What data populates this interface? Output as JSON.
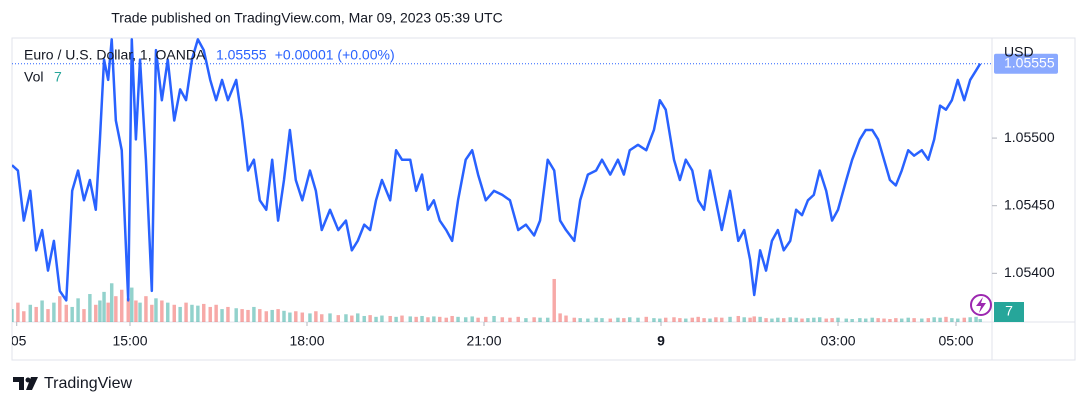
{
  "chart_data": {
    "type": "line",
    "title": "Trade published on TradingView.com, Mar 09, 2023 05:39 UTC",
    "change": "+0.00001 (+0.00%)",
    "currency": "USD",
    "brand": "TradingView",
    "x": [
      13.0,
      13.1,
      13.2,
      13.31,
      13.41,
      13.51,
      13.61,
      13.71,
      13.81,
      13.92,
      14.02,
      14.12,
      14.22,
      14.32,
      14.42,
      14.49,
      14.56,
      14.63,
      14.69,
      14.76,
      14.86,
      14.97,
      15.03,
      15.1,
      15.17,
      15.27,
      15.37,
      15.44,
      15.54,
      15.64,
      15.75,
      15.85,
      15.95,
      16.05,
      16.15,
      16.25,
      16.36,
      16.46,
      16.56,
      16.66,
      16.8,
      16.9,
      17.0,
      17.1,
      17.2,
      17.31,
      17.41,
      17.51,
      17.61,
      17.71,
      17.81,
      17.92,
      18.05,
      18.15,
      18.25,
      18.39,
      18.53,
      18.66,
      18.76,
      18.86,
      18.97,
      19.07,
      19.17,
      19.27,
      19.41,
      19.51,
      19.61,
      19.75,
      19.85,
      19.95,
      20.05,
      20.15,
      20.25,
      20.36,
      20.46,
      20.56,
      20.69,
      20.8,
      20.9,
      21.03,
      21.17,
      21.31,
      21.44,
      21.58,
      21.71,
      21.85,
      21.95,
      22.08,
      22.19,
      22.29,
      22.39,
      22.53,
      22.63,
      22.76,
      22.9,
      23.0,
      23.14,
      23.27,
      23.37,
      23.47,
      23.61,
      23.75,
      23.88,
      23.98,
      24.08,
      24.22,
      24.32,
      24.42,
      24.53,
      24.63,
      24.73,
      24.83,
      24.93,
      25.03,
      25.17,
      25.31,
      25.41,
      25.51,
      25.58,
      25.68,
      25.78,
      25.88,
      25.98,
      26.08,
      26.19,
      26.29,
      26.39,
      26.49,
      26.59,
      26.69,
      26.8,
      26.9,
      27.0,
      27.14,
      27.24,
      27.37,
      27.47,
      27.58,
      27.68,
      27.78,
      27.88,
      27.98,
      28.08,
      28.19,
      28.29,
      28.42,
      28.53,
      28.63,
      28.73,
      28.83,
      28.93,
      29.03,
      29.14,
      29.24,
      29.34,
      29.41
    ],
    "series": [
      {
        "name": "Euro / U.S. Dollar, 1, OANDA",
        "color": "#2962ff",
        "values": [
          1.0548,
          1.05476,
          1.05439,
          1.05461,
          1.05417,
          1.05432,
          1.05402,
          1.05424,
          1.05387,
          1.0538,
          1.05461,
          1.05476,
          1.05454,
          1.05469,
          1.05447,
          1.05499,
          1.05558,
          1.05543,
          1.05573,
          1.05513,
          1.05491,
          1.0538,
          1.05573,
          1.05499,
          1.05558,
          1.05484,
          1.05387,
          1.05565,
          1.05528,
          1.05558,
          1.05513,
          1.05536,
          1.05528,
          1.05558,
          1.05573,
          1.05565,
          1.05543,
          1.05528,
          1.05543,
          1.05528,
          1.05543,
          1.05513,
          1.05476,
          1.05484,
          1.05454,
          1.05447,
          1.05484,
          1.05439,
          1.05469,
          1.05506,
          1.05469,
          1.05454,
          1.05476,
          1.05461,
          1.05432,
          1.05447,
          1.05432,
          1.05439,
          1.05417,
          1.05424,
          1.05436,
          1.05432,
          1.05454,
          1.05469,
          1.05454,
          1.05491,
          1.05484,
          1.05484,
          1.05461,
          1.05473,
          1.05447,
          1.05454,
          1.05439,
          1.05432,
          1.05424,
          1.05454,
          1.05484,
          1.05491,
          1.05473,
          1.05454,
          1.05461,
          1.05458,
          1.05454,
          1.05432,
          1.05436,
          1.05428,
          1.05439,
          1.05484,
          1.05476,
          1.05439,
          1.05432,
          1.05424,
          1.05454,
          1.05473,
          1.05476,
          1.05484,
          1.05473,
          1.05484,
          1.05473,
          1.05491,
          1.05495,
          1.05491,
          1.05506,
          1.05528,
          1.05521,
          1.05484,
          1.05469,
          1.05484,
          1.05476,
          1.05454,
          1.05447,
          1.05476,
          1.05454,
          1.05432,
          1.05461,
          1.05424,
          1.05432,
          1.0541,
          1.05384,
          1.05417,
          1.05402,
          1.05424,
          1.05432,
          1.05417,
          1.05424,
          1.05447,
          1.05443,
          1.05454,
          1.05458,
          1.05476,
          1.05461,
          1.05439,
          1.05447,
          1.05469,
          1.05484,
          1.05499,
          1.05506,
          1.05506,
          1.05499,
          1.05484,
          1.05469,
          1.05465,
          1.05476,
          1.05491,
          1.05487,
          1.05491,
          1.05484,
          1.05499,
          1.05524,
          1.05521,
          1.05528,
          1.05543,
          1.05528,
          1.05543,
          1.0555,
          1.05555
        ]
      }
    ],
    "volume": {
      "name": "Vol",
      "up_color": "#26a69a",
      "down_color": "#ef5350",
      "lim": [
        0,
        660
      ],
      "values": [
        30,
        45,
        25,
        40,
        35,
        50,
        30,
        45,
        60,
        40,
        35,
        55,
        30,
        65,
        40,
        50,
        70,
        45,
        90,
        60,
        75,
        55,
        80,
        50,
        45,
        60,
        40,
        55,
        50,
        45,
        40,
        35,
        45,
        40,
        38,
        42,
        35,
        40,
        30,
        35,
        32,
        30,
        28,
        35,
        30,
        25,
        28,
        30,
        26,
        22,
        25,
        22,
        20,
        25,
        18,
        20,
        16,
        18,
        15,
        20,
        14,
        16,
        12,
        15,
        14,
        12,
        15,
        13,
        12,
        14,
        11,
        13,
        12,
        10,
        14,
        12,
        11,
        13,
        10,
        12,
        14,
        11,
        10,
        12,
        9,
        11,
        10,
        10,
        100,
        20,
        15,
        10,
        9,
        8,
        10,
        9,
        8,
        10,
        9,
        11,
        10,
        12,
        9,
        8,
        10,
        11,
        9,
        8,
        10,
        12,
        9,
        8,
        11,
        10,
        12,
        14,
        11,
        10,
        13,
        12,
        9,
        8,
        10,
        9,
        11,
        10,
        8,
        9,
        10,
        11,
        8,
        9,
        10,
        8,
        7,
        9,
        8,
        10,
        9,
        8,
        7,
        9,
        8,
        10,
        9,
        8,
        9,
        11,
        10,
        12,
        9,
        8,
        10,
        11,
        12,
        7
      ]
    },
    "xlim": [
      13.0,
      29.61
    ],
    "xticks": [
      {
        "value": 13.08,
        "label": ":05"
      },
      {
        "value": 15,
        "label": "15:00"
      },
      {
        "value": 18,
        "label": "18:00"
      },
      {
        "value": 21,
        "label": "21:00"
      },
      {
        "value": 24,
        "label": "9"
      },
      {
        "value": 27,
        "label": "03:00"
      },
      {
        "value": 29,
        "label": "05:00"
      }
    ],
    "ylim": [
      1.05364,
      1.05574
    ],
    "yticks": [
      {
        "value": 1.055,
        "label": "1.05500"
      },
      {
        "value": 1.0545,
        "label": "1.05450"
      },
      {
        "value": 1.054,
        "label": "1.05400"
      }
    ],
    "grid": false
  }
}
